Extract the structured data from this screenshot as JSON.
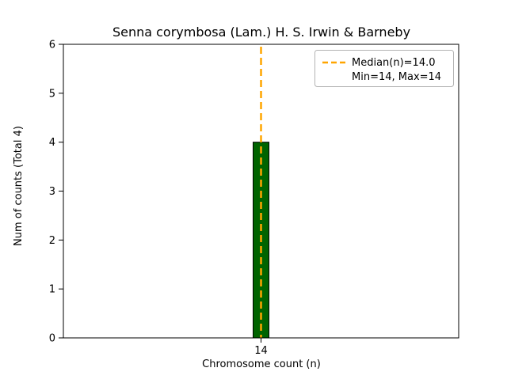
{
  "chart_data": {
    "type": "bar",
    "title": "Senna corymbosa (Lam.) H. S. Irwin & Barneby",
    "xlabel": "Chromosome count (n)",
    "ylabel": "Num of counts      (Total 4)",
    "categories": [
      "14"
    ],
    "values": [
      4
    ],
    "total_counts": 4,
    "ylim": [
      0,
      6
    ],
    "yticks": [
      0,
      1,
      2,
      3,
      4,
      5,
      6
    ],
    "median": 14.0,
    "min": 14,
    "max": 14,
    "legend": {
      "position": "upper right",
      "median_label": "Median(n)=14.0",
      "minmax_label": "Min=14, Max=14"
    },
    "grid": false,
    "colors": {
      "bar_fill": "#006400",
      "bar_edge": "#000000",
      "median_line": "#FFA500",
      "axis": "#000000",
      "legend_border": "#b3b3b3",
      "background": "#ffffff"
    }
  }
}
